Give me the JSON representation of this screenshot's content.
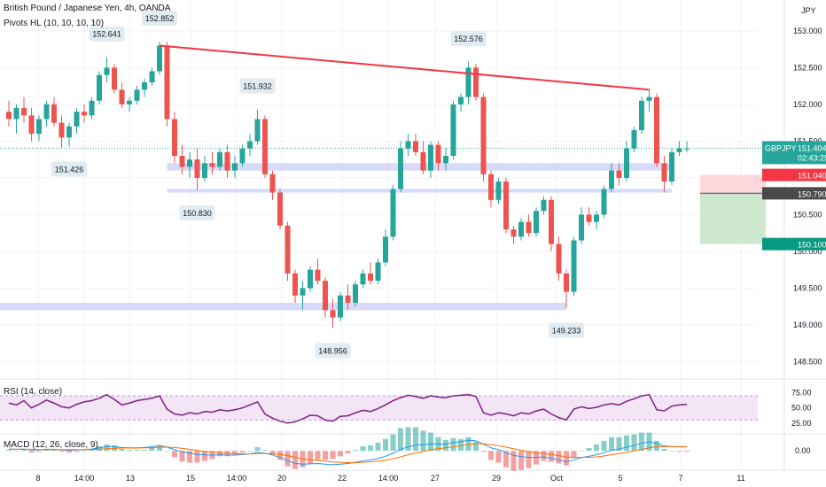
{
  "header": {
    "title": "British Pound / Japanese Yen, 4h, OANDA",
    "indicator": "Pivots HL (10, 10, 10, 10)",
    "currency": "JPY"
  },
  "colors": {
    "up": "#26a69a",
    "down": "#ef5350",
    "trendline": "#f23645",
    "zone": "#c9cdf5",
    "rsi": "#7e1f86",
    "rsi_band": "#f3e5f5",
    "macd": "#2196f3",
    "signal": "#ff6d00",
    "tp_zone": "#c8e6c9",
    "sl_zone": "#ffcdd2"
  },
  "price_tags": {
    "symbol": "GBPJPY",
    "last": "151.404",
    "countdown": "02:43:25",
    "stop": "151.040",
    "entry": "150.790",
    "target": "150.100"
  },
  "chart_data": [
    {
      "type": "candlestick",
      "title": "British Pound / Japanese Yen, 4h, OANDA",
      "ylim": [
        148.3,
        153.3
      ],
      "y_ticks": [
        "148.500",
        "149.000",
        "149.500",
        "150.000",
        "150.500",
        "151.000",
        "151.500",
        "152.000",
        "152.500",
        "153.000"
      ],
      "x_ticks": [
        "8",
        "14:00",
        "13",
        "15",
        "14:00",
        "20",
        "22",
        "14:00",
        "27",
        "29",
        "Oct",
        "5",
        "7",
        "11"
      ],
      "candles": [
        [
          151.9,
          152.05,
          151.7,
          151.8
        ],
        [
          151.8,
          152.0,
          151.6,
          151.95
        ],
        [
          151.95,
          152.1,
          151.75,
          151.85
        ],
        [
          151.85,
          151.95,
          151.5,
          151.6
        ],
        [
          151.6,
          151.85,
          151.5,
          151.8
        ],
        [
          151.8,
          152.05,
          151.7,
          152.0
        ],
        [
          152.0,
          152.1,
          151.7,
          151.75
        ],
        [
          151.75,
          151.85,
          151.4,
          151.55
        ],
        [
          151.55,
          151.75,
          151.43,
          151.7
        ],
        [
          151.7,
          151.95,
          151.6,
          151.9
        ],
        [
          151.9,
          152.0,
          151.75,
          151.85
        ],
        [
          151.85,
          152.1,
          151.8,
          152.05
        ],
        [
          152.05,
          152.45,
          152.0,
          152.4
        ],
        [
          152.4,
          152.64,
          152.3,
          152.5
        ],
        [
          152.5,
          152.55,
          152.15,
          152.2
        ],
        [
          152.2,
          152.3,
          151.95,
          152.0
        ],
        [
          152.0,
          152.1,
          151.9,
          152.05
        ],
        [
          152.05,
          152.25,
          152.0,
          152.2
        ],
        [
          152.2,
          152.35,
          152.1,
          152.3
        ],
        [
          152.3,
          152.5,
          152.25,
          152.45
        ],
        [
          152.45,
          152.85,
          152.4,
          152.8
        ],
        [
          152.8,
          152.85,
          151.7,
          151.8
        ],
        [
          151.8,
          151.9,
          151.2,
          151.3
        ],
        [
          151.3,
          151.45,
          151.05,
          151.15
        ],
        [
          151.15,
          151.35,
          151.0,
          151.25
        ],
        [
          151.25,
          151.4,
          150.83,
          151.0
        ],
        [
          151.0,
          151.3,
          150.95,
          151.2
        ],
        [
          151.2,
          151.35,
          151.05,
          151.15
        ],
        [
          151.15,
          151.4,
          151.1,
          151.35
        ],
        [
          151.35,
          151.45,
          151.0,
          151.1
        ],
        [
          151.1,
          151.3,
          151.0,
          151.2
        ],
        [
          151.2,
          151.45,
          151.15,
          151.4
        ],
        [
          151.4,
          151.6,
          151.3,
          151.5
        ],
        [
          151.5,
          151.93,
          151.45,
          151.8
        ],
        [
          151.8,
          151.85,
          151.0,
          151.05
        ],
        [
          151.05,
          151.1,
          150.7,
          150.8
        ],
        [
          150.8,
          150.85,
          150.3,
          150.35
        ],
        [
          150.35,
          150.4,
          149.6,
          149.7
        ],
        [
          149.7,
          149.75,
          149.3,
          149.4
        ],
        [
          149.4,
          149.6,
          149.2,
          149.5
        ],
        [
          149.5,
          149.8,
          149.45,
          149.75
        ],
        [
          149.75,
          149.9,
          149.55,
          149.6
        ],
        [
          149.6,
          149.65,
          149.1,
          149.2
        ],
        [
          149.2,
          149.35,
          148.96,
          149.1
        ],
        [
          149.1,
          149.45,
          149.05,
          149.4
        ],
        [
          149.4,
          149.55,
          149.2,
          149.3
        ],
        [
          149.3,
          149.6,
          149.25,
          149.55
        ],
        [
          149.55,
          149.75,
          149.5,
          149.7
        ],
        [
          149.7,
          149.85,
          149.55,
          149.6
        ],
        [
          149.6,
          149.9,
          149.55,
          149.85
        ],
        [
          149.85,
          150.3,
          149.8,
          150.2
        ],
        [
          150.2,
          150.9,
          150.15,
          150.85
        ],
        [
          150.85,
          151.5,
          150.8,
          151.4
        ],
        [
          151.4,
          151.6,
          151.3,
          151.5
        ],
        [
          151.5,
          151.6,
          151.3,
          151.35
        ],
        [
          151.35,
          151.5,
          151.05,
          151.1
        ],
        [
          151.1,
          151.5,
          151.0,
          151.45
        ],
        [
          151.45,
          151.5,
          151.1,
          151.2
        ],
        [
          151.2,
          151.4,
          151.1,
          151.3
        ],
        [
          151.3,
          152.05,
          151.25,
          152.0
        ],
        [
          152.0,
          152.15,
          151.9,
          152.1
        ],
        [
          152.1,
          152.58,
          152.0,
          152.5
        ],
        [
          152.5,
          152.55,
          152.05,
          152.1
        ],
        [
          152.1,
          152.15,
          150.95,
          151.05
        ],
        [
          151.05,
          151.1,
          150.6,
          150.7
        ],
        [
          150.7,
          151.0,
          150.65,
          150.95
        ],
        [
          150.95,
          151.0,
          150.25,
          150.3
        ],
        [
          150.3,
          150.35,
          150.1,
          150.2
        ],
        [
          150.2,
          150.45,
          150.15,
          150.4
        ],
        [
          150.4,
          150.5,
          150.2,
          150.25
        ],
        [
          150.25,
          150.6,
          150.2,
          150.55
        ],
        [
          150.55,
          150.75,
          150.5,
          150.7
        ],
        [
          150.7,
          150.75,
          150.0,
          150.1
        ],
        [
          150.1,
          150.2,
          149.6,
          149.7
        ],
        [
          149.7,
          149.75,
          149.23,
          149.45
        ],
        [
          149.45,
          150.2,
          149.4,
          150.15
        ],
        [
          150.15,
          150.6,
          150.1,
          150.5
        ],
        [
          150.5,
          150.6,
          150.35,
          150.4
        ],
        [
          150.4,
          150.55,
          150.3,
          150.5
        ],
        [
          150.5,
          150.9,
          150.45,
          150.85
        ],
        [
          150.85,
          151.2,
          150.8,
          151.1
        ],
        [
          151.1,
          151.2,
          150.9,
          151.0
        ],
        [
          151.0,
          151.5,
          150.95,
          151.4
        ],
        [
          151.4,
          151.7,
          151.35,
          151.65
        ],
        [
          151.65,
          152.1,
          151.6,
          152.05
        ],
        [
          152.05,
          152.2,
          151.9,
          152.1
        ],
        [
          152.1,
          152.15,
          151.15,
          151.2
        ],
        [
          151.2,
          151.3,
          150.8,
          150.95
        ],
        [
          150.95,
          151.4,
          150.9,
          151.35
        ],
        [
          151.35,
          151.5,
          151.3,
          151.4
        ],
        [
          151.4,
          151.5,
          151.35,
          151.4
        ]
      ],
      "trendline": [
        [
          20,
          152.8
        ],
        [
          85,
          152.2
        ]
      ],
      "zones": [
        {
          "from": 21,
          "to": 88,
          "top": 151.2,
          "bottom": 151.1
        },
        {
          "from": 21,
          "to": 88,
          "top": 150.85,
          "bottom": 150.8
        },
        {
          "from": -3,
          "to": 74,
          "top": 149.3,
          "bottom": 149.2
        }
      ],
      "position": {
        "entry": 150.79,
        "stop": 151.04,
        "target": 150.1
      },
      "pivot_labels": [
        {
          "i": 13,
          "price": 152.641,
          "text": "152.641",
          "kind": "high"
        },
        {
          "i": 20,
          "price": 152.852,
          "text": "152.852",
          "kind": "high"
        },
        {
          "i": 33,
          "price": 151.932,
          "text": "151.932",
          "kind": "high"
        },
        {
          "i": 61,
          "price": 152.576,
          "text": "152.576",
          "kind": "high"
        },
        {
          "i": 8,
          "price": 151.426,
          "text": "151.426",
          "kind": "low"
        },
        {
          "i": 25,
          "price": 150.83,
          "text": "150.830",
          "kind": "low"
        },
        {
          "i": 43,
          "price": 148.956,
          "text": "148.956",
          "kind": "low"
        },
        {
          "i": 74,
          "price": 149.233,
          "text": "149.233",
          "kind": "low"
        }
      ]
    },
    {
      "type": "line",
      "title": "RSI (14, close)",
      "ylim": [
        10,
        95
      ],
      "band": [
        30,
        70
      ],
      "y_ticks": [
        "75.00",
        "50.00",
        "25.00"
      ],
      "series": [
        {
          "name": "RSI",
          "values": [
            58,
            55,
            62,
            50,
            56,
            63,
            58,
            52,
            50,
            56,
            60,
            62,
            66,
            72,
            64,
            55,
            58,
            62,
            64,
            66,
            70,
            48,
            40,
            38,
            42,
            40,
            44,
            43,
            47,
            45,
            47,
            50,
            55,
            60,
            40,
            33,
            28,
            25,
            27,
            32,
            38,
            37,
            30,
            28,
            36,
            37,
            42,
            46,
            44,
            49,
            55,
            62,
            67,
            71,
            69,
            66,
            70,
            68,
            67,
            70,
            71,
            72,
            69,
            42,
            38,
            42,
            40,
            37,
            42,
            40,
            45,
            48,
            40,
            34,
            30,
            48,
            52,
            49,
            51,
            55,
            57,
            55,
            61,
            65,
            70,
            72,
            47,
            45,
            53,
            55,
            56
          ]
        }
      ]
    },
    {
      "type": "line",
      "title": "MACD (12, 26, close, 9)",
      "ylim": [
        -0.55,
        0.5
      ],
      "y_ticks": [
        "0.00"
      ],
      "series": [
        {
          "name": "MACD",
          "values": [
            0.06,
            0.05,
            0.06,
            0.03,
            0.03,
            0.05,
            0.05,
            0.03,
            0.02,
            0.03,
            0.04,
            0.06,
            0.1,
            0.14,
            0.14,
            0.11,
            0.1,
            0.1,
            0.11,
            0.13,
            0.18,
            0.12,
            0.04,
            -0.04,
            -0.08,
            -0.12,
            -0.13,
            -0.14,
            -0.13,
            -0.14,
            -0.14,
            -0.12,
            -0.1,
            -0.05,
            -0.08,
            -0.14,
            -0.22,
            -0.33,
            -0.41,
            -0.44,
            -0.43,
            -0.42,
            -0.44,
            -0.46,
            -0.44,
            -0.42,
            -0.38,
            -0.33,
            -0.3,
            -0.25,
            -0.18,
            -0.08,
            0.05,
            0.13,
            0.19,
            0.2,
            0.23,
            0.22,
            0.22,
            0.27,
            0.3,
            0.35,
            0.33,
            0.22,
            0.1,
            0.04,
            -0.06,
            -0.15,
            -0.19,
            -0.22,
            -0.22,
            -0.2,
            -0.24,
            -0.3,
            -0.36,
            -0.3,
            -0.22,
            -0.18,
            -0.13,
            -0.06,
            0.02,
            0.06,
            0.12,
            0.18,
            0.25,
            0.3,
            0.24,
            0.16,
            0.14,
            0.13,
            0.13
          ]
        },
        {
          "name": "Signal",
          "values": [
            0.05,
            0.05,
            0.05,
            0.05,
            0.04,
            0.04,
            0.04,
            0.04,
            0.04,
            0.04,
            0.04,
            0.04,
            0.05,
            0.07,
            0.08,
            0.09,
            0.09,
            0.09,
            0.1,
            0.1,
            0.12,
            0.12,
            0.11,
            0.08,
            0.05,
            0.01,
            -0.02,
            -0.05,
            -0.07,
            -0.08,
            -0.1,
            -0.1,
            -0.1,
            -0.09,
            -0.09,
            -0.1,
            -0.12,
            -0.16,
            -0.21,
            -0.26,
            -0.29,
            -0.32,
            -0.34,
            -0.37,
            -0.38,
            -0.39,
            -0.39,
            -0.38,
            -0.36,
            -0.34,
            -0.31,
            -0.26,
            -0.2,
            -0.13,
            -0.07,
            -0.02,
            0.03,
            0.07,
            0.1,
            0.13,
            0.17,
            0.2,
            0.23,
            0.23,
            0.2,
            0.17,
            0.12,
            0.07,
            0.02,
            -0.03,
            -0.07,
            -0.09,
            -0.12,
            -0.16,
            -0.2,
            -0.22,
            -0.22,
            -0.21,
            -0.2,
            -0.17,
            -0.13,
            -0.09,
            -0.05,
            0,
            0.05,
            0.1,
            0.13,
            0.14,
            0.14,
            0.14,
            0.14
          ]
        }
      ]
    }
  ]
}
